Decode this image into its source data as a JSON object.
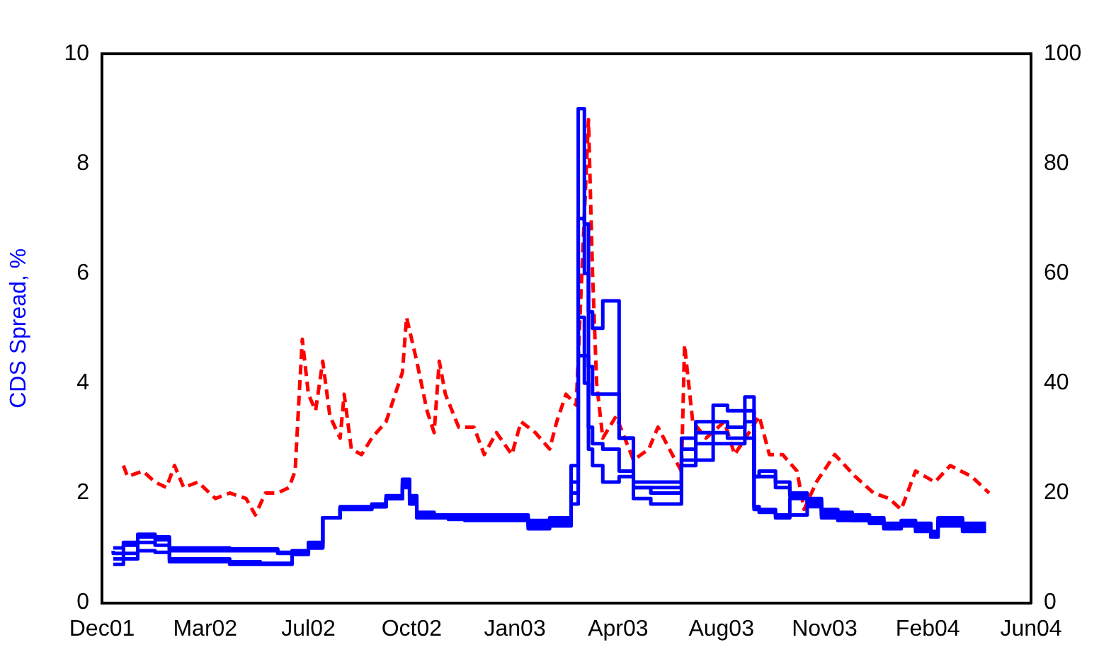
{
  "chart_data": {
    "type": "line",
    "ylabel": "CDS Spread, %",
    "xlim": [
      "2001-12-11",
      "2004-06-07"
    ],
    "xticks": [
      {
        "value": "2001-12-11",
        "label": "Dec01"
      },
      {
        "value": "2002-03-22",
        "label": "Mar02"
      },
      {
        "value": "2002-07-01",
        "label": "Jul02"
      },
      {
        "value": "2002-10-10",
        "label": "Oct02"
      },
      {
        "value": "2003-01-19",
        "label": "Jan03"
      },
      {
        "value": "2003-04-30",
        "label": "Apr03"
      },
      {
        "value": "2003-08-09",
        "label": "Aug03"
      },
      {
        "value": "2003-11-18",
        "label": "Nov03"
      },
      {
        "value": "2004-02-27",
        "label": "Feb04"
      },
      {
        "value": "2004-06-07",
        "label": "Jun04"
      }
    ],
    "ylim": [
      0,
      10
    ],
    "yticks": [
      0,
      2,
      4,
      6,
      8,
      10
    ],
    "y2lim": [
      0,
      100
    ],
    "y2ticks": [
      0,
      20,
      40,
      60,
      80,
      100
    ],
    "grid": false,
    "legend": false,
    "marker": "none",
    "x": [
      "2001-12-22",
      "2002-01-01",
      "2002-01-15",
      "2002-02-01",
      "2002-02-15",
      "2002-03-01",
      "2002-03-15",
      "2002-04-01",
      "2002-04-15",
      "2002-05-01",
      "2002-05-15",
      "2002-06-01",
      "2002-06-15",
      "2002-07-01",
      "2002-07-15",
      "2002-08-01",
      "2002-08-15",
      "2002-09-01",
      "2002-09-15",
      "2002-10-01",
      "2002-10-08",
      "2002-10-15",
      "2002-11-01",
      "2002-11-15",
      "2002-12-01",
      "2003-01-01",
      "2003-02-01",
      "2003-02-22",
      "2003-03-15",
      "2003-03-22",
      "2003-03-28",
      "2003-04-01",
      "2003-04-05",
      "2003-04-15",
      "2003-05-01",
      "2003-05-15",
      "2003-06-01",
      "2003-06-15",
      "2003-07-01",
      "2003-07-15",
      "2003-08-01",
      "2003-08-15",
      "2003-09-01",
      "2003-09-10",
      "2003-09-15",
      "2003-10-01",
      "2003-10-15",
      "2003-11-01",
      "2003-11-15",
      "2003-12-01",
      "2003-12-15",
      "2004-01-01",
      "2004-01-15",
      "2004-02-01",
      "2004-02-15",
      "2004-03-01",
      "2004-03-08",
      "2004-03-15",
      "2004-04-01",
      "2004-04-15",
      "2004-04-24"
    ],
    "series": [
      {
        "type": "step",
        "color": "#0000ff",
        "values": [
          1.0,
          1.0,
          1.1,
          1.25,
          1.2,
          1.0,
          1.0,
          1.0,
          1.0,
          0.98,
          0.98,
          0.98,
          0.92,
          0.95,
          1.1,
          1.55,
          1.75,
          1.75,
          1.8,
          1.95,
          2.25,
          1.95,
          1.65,
          1.6,
          1.6,
          1.6,
          1.6,
          1.5,
          1.55,
          2.5,
          9.0,
          6.9,
          5.3,
          5.0,
          5.5,
          3.0,
          2.2,
          2.2,
          2.2,
          3.0,
          3.3,
          3.6,
          3.5,
          3.75,
          2.3,
          2.4,
          2.2,
          2.0,
          1.9,
          1.7,
          1.65,
          1.6,
          1.55,
          1.45,
          1.5,
          1.45,
          1.3,
          1.55,
          1.55,
          1.45,
          1.45
        ]
      },
      {
        "type": "step",
        "color": "#0000ff",
        "values": [
          0.95,
          0.9,
          1.05,
          1.2,
          1.15,
          0.95,
          0.95,
          0.95,
          0.95,
          0.95,
          0.95,
          0.95,
          0.9,
          0.93,
          1.05,
          1.55,
          1.72,
          1.72,
          1.75,
          1.9,
          2.2,
          1.9,
          1.6,
          1.55,
          1.55,
          1.55,
          1.55,
          1.45,
          1.5,
          2.2,
          7.0,
          6.0,
          4.3,
          3.8,
          3.8,
          3.0,
          2.1,
          2.1,
          2.1,
          2.8,
          3.1,
          3.3,
          3.2,
          3.5,
          2.3,
          2.3,
          2.1,
          1.95,
          1.85,
          1.65,
          1.6,
          1.55,
          1.5,
          1.42,
          1.45,
          1.4,
          1.25,
          1.5,
          1.5,
          1.4,
          1.4
        ]
      },
      {
        "type": "step",
        "color": "#0000ff",
        "values": [
          0.8,
          0.8,
          0.9,
          1.1,
          1.05,
          0.8,
          0.8,
          0.8,
          0.8,
          0.75,
          0.75,
          0.72,
          0.72,
          0.9,
          1.0,
          1.55,
          1.72,
          1.72,
          1.75,
          1.9,
          2.15,
          1.85,
          1.6,
          1.55,
          1.55,
          1.52,
          1.52,
          1.4,
          1.45,
          2.0,
          5.2,
          4.5,
          3.2,
          2.9,
          2.8,
          2.4,
          2.1,
          2.0,
          2.0,
          2.6,
          2.9,
          3.1,
          3.0,
          3.3,
          1.75,
          1.7,
          1.6,
          1.9,
          1.8,
          1.6,
          1.55,
          1.5,
          1.45,
          1.38,
          1.42,
          1.35,
          1.2,
          1.45,
          1.45,
          1.35,
          1.35
        ]
      },
      {
        "type": "step",
        "color": "#0000ff",
        "values": [
          0.7,
          0.7,
          0.8,
          0.95,
          0.92,
          0.75,
          0.75,
          0.75,
          0.75,
          0.7,
          0.7,
          0.7,
          0.7,
          0.88,
          1.0,
          1.55,
          1.7,
          1.7,
          1.75,
          1.9,
          2.1,
          1.8,
          1.55,
          1.55,
          1.52,
          1.5,
          1.5,
          1.35,
          1.4,
          1.8,
          4.5,
          4.0,
          2.8,
          2.5,
          2.2,
          2.3,
          1.9,
          1.8,
          1.8,
          2.5,
          2.6,
          2.9,
          2.9,
          3.0,
          1.7,
          1.65,
          1.55,
          1.6,
          1.75,
          1.55,
          1.5,
          1.5,
          1.45,
          1.35,
          1.4,
          1.3,
          1.2,
          1.4,
          1.4,
          1.3,
          1.3
        ]
      },
      {
        "type": "line",
        "axis": "y2",
        "color": "#ff0000",
        "line_style": "dashed",
        "x": [
          "2002-01-01",
          "2002-01-05",
          "2002-01-20",
          "2002-02-01",
          "2002-02-12",
          "2002-02-20",
          "2002-03-01",
          "2002-03-15",
          "2002-04-01",
          "2002-04-15",
          "2002-05-01",
          "2002-05-10",
          "2002-05-20",
          "2002-06-01",
          "2002-06-12",
          "2002-06-18",
          "2002-06-22",
          "2002-06-25",
          "2002-07-01",
          "2002-07-08",
          "2002-07-15",
          "2002-07-22",
          "2002-08-01",
          "2002-08-05",
          "2002-08-12",
          "2002-08-22",
          "2002-09-01",
          "2002-09-15",
          "2002-10-01",
          "2002-10-05",
          "2002-10-15",
          "2002-10-25",
          "2002-11-01",
          "2002-11-06",
          "2002-11-12",
          "2002-11-25",
          "2002-12-10",
          "2002-12-20",
          "2003-01-01",
          "2003-01-16",
          "2003-01-25",
          "2003-02-08",
          "2003-02-22",
          "2003-03-01",
          "2003-03-10",
          "2003-03-20",
          "2003-04-01",
          "2003-04-05",
          "2003-04-09",
          "2003-04-15",
          "2003-04-28",
          "2003-05-15",
          "2003-05-30",
          "2003-06-08",
          "2003-06-22",
          "2003-07-01",
          "2003-07-04",
          "2003-07-12",
          "2003-07-25",
          "2003-08-12",
          "2003-08-22",
          "2003-09-05",
          "2003-09-15",
          "2003-09-25",
          "2003-10-08",
          "2003-10-22",
          "2003-10-29",
          "2003-11-10",
          "2003-11-28",
          "2003-12-18",
          "2004-01-05",
          "2004-01-20",
          "2004-02-01",
          "2004-02-15",
          "2004-03-05",
          "2004-03-20",
          "2004-04-10",
          "2004-04-27"
        ],
        "values": [
          25,
          23,
          24,
          22,
          21,
          25,
          21,
          22,
          19,
          20,
          19,
          16,
          20,
          20,
          21,
          24,
          38,
          48,
          38,
          35,
          44,
          34,
          30,
          38,
          28,
          27,
          30,
          33,
          42,
          52,
          44,
          35,
          31,
          44,
          38,
          32,
          32,
          27,
          31,
          27,
          33,
          31,
          28,
          33,
          38,
          36,
          88,
          60,
          40,
          30,
          34,
          26,
          28,
          32,
          27,
          24,
          47,
          33,
          30,
          33,
          27,
          31,
          34,
          27,
          27,
          24,
          17,
          22,
          27,
          23,
          20,
          19,
          17,
          24,
          22,
          25,
          23,
          20
        ]
      }
    ]
  }
}
